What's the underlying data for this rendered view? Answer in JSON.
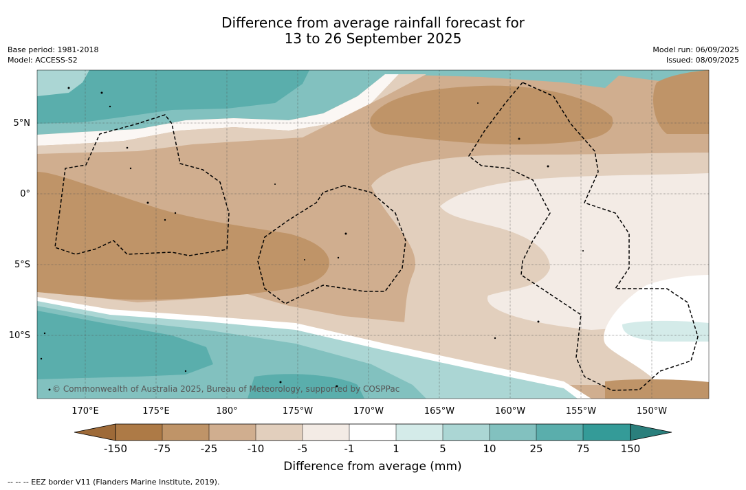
{
  "title": {
    "line1": "Difference from average rainfall forecast for",
    "line2": "13 to 26 September 2025"
  },
  "meta": {
    "base_period": "Base period: 1981-2018",
    "model": "Model: ACCESS-S2",
    "model_run": "Model run: 06/09/2025",
    "issued": "Issued: 08/09/2025"
  },
  "map": {
    "lon_labels": [
      "170°E",
      "175°E",
      "180°",
      "175°W",
      "170°W",
      "165°W",
      "160°W",
      "155°W",
      "150°W"
    ],
    "lat_labels": [
      "5°N",
      "0°",
      "5°S",
      "10°S"
    ],
    "copyright": "© Commonwealth of Australia 2025, Bureau of Meteorology, supported by COSPPac"
  },
  "colorbar": {
    "title": "Difference from average (mm)",
    "ticks": [
      "-150",
      "-75",
      "-25",
      "-10",
      "-5",
      "-1",
      "1",
      "5",
      "10",
      "25",
      "75",
      "150"
    ],
    "colors": {
      "below_min": "#9e6a38",
      "b1": "#ad7a46",
      "b2": "#bf9468",
      "b3": "#d0ae8f",
      "b4": "#e2cfbd",
      "b5": "#f3ebe5",
      "b6": "#ffffff",
      "b7": "#d4ebe9",
      "b8": "#abd6d4",
      "b9": "#82c1bf",
      "b10": "#5aaeac",
      "b11": "#349b98",
      "above_max": "#2a7f7c"
    }
  },
  "footnote": "-- -- -- EEZ border V11 (Flanders Marine Institute, 2019)."
}
